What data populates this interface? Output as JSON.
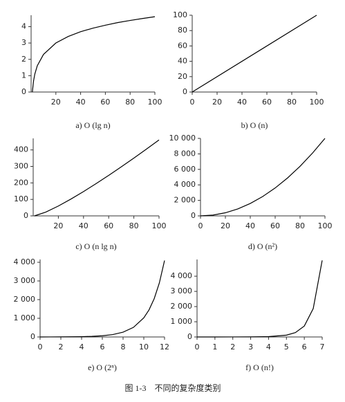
{
  "chart_data": [
    {
      "type": "line",
      "caption": "a) O (lg n)",
      "x": [
        1,
        2,
        3,
        5,
        10,
        20,
        30,
        40,
        50,
        60,
        70,
        80,
        90,
        100
      ],
      "series": [
        {
          "color": "#000000",
          "values": [
            0,
            0.69,
            1.1,
            1.61,
            2.3,
            3.0,
            3.4,
            3.69,
            3.91,
            4.09,
            4.25,
            4.38,
            4.5,
            4.61
          ]
        }
      ],
      "xlim": [
        0,
        100
      ],
      "ylim": [
        0,
        4.7
      ],
      "xticks": [
        20,
        40,
        60,
        80,
        100
      ],
      "yticks": [
        0,
        1,
        2,
        3,
        4
      ]
    },
    {
      "type": "line",
      "caption": "b) O (n)",
      "x": [
        0,
        100
      ],
      "series": [
        {
          "color": "#000000",
          "values": [
            0,
            100
          ]
        }
      ],
      "xlim": [
        0,
        100
      ],
      "ylim": [
        0,
        100
      ],
      "xticks": [
        0,
        20,
        40,
        60,
        80,
        100
      ],
      "yticks": [
        0,
        20,
        40,
        60,
        80,
        100
      ]
    },
    {
      "type": "line",
      "caption": "c) O (n lg n)",
      "x": [
        1,
        10,
        20,
        30,
        40,
        50,
        60,
        70,
        80,
        90,
        100
      ],
      "series": [
        {
          "color": "#000000",
          "values": [
            0,
            23.0,
            59.9,
            102.0,
            147.6,
            195.6,
            245.7,
            297.4,
            350.6,
            405.0,
            460.5
          ]
        }
      ],
      "xlim": [
        0,
        100
      ],
      "ylim": [
        0,
        470
      ],
      "xticks": [
        20,
        40,
        60,
        80,
        100
      ],
      "yticks": [
        0,
        100,
        200,
        300,
        400
      ]
    },
    {
      "type": "line",
      "caption": "d) O (n²)",
      "x": [
        0,
        10,
        20,
        30,
        40,
        50,
        60,
        70,
        80,
        90,
        100
      ],
      "series": [
        {
          "color": "#000000",
          "values": [
            0,
            100,
            400,
            900,
            1600,
            2500,
            3600,
            4900,
            6400,
            8100,
            10000
          ]
        }
      ],
      "xlim": [
        0,
        100
      ],
      "ylim": [
        0,
        10000
      ],
      "xticks": [
        0,
        20,
        40,
        60,
        80,
        100
      ],
      "yticks": [
        0,
        {
          "value": 2000,
          "label": "2 000"
        },
        {
          "value": 4000,
          "label": "4 000"
        },
        {
          "value": 6000,
          "label": "6 000"
        },
        {
          "value": 8000,
          "label": "8 000"
        },
        {
          "value": 10000,
          "label": "10 000"
        }
      ]
    },
    {
      "type": "line",
      "caption": "e) O (2ⁿ)",
      "x": [
        0,
        1,
        2,
        3,
        4,
        5,
        6,
        7,
        8,
        9,
        10,
        10.5,
        11,
        11.5,
        12
      ],
      "series": [
        {
          "color": "#000000",
          "values": [
            1,
            2,
            4,
            8,
            16,
            32,
            64,
            128,
            256,
            512,
            1024,
            1448,
            2048,
            2896,
            4096
          ]
        }
      ],
      "xlim": [
        0,
        12
      ],
      "ylim": [
        0,
        4150
      ],
      "xticks": [
        0,
        2,
        4,
        6,
        8,
        10,
        12
      ],
      "yticks": [
        0,
        {
          "value": 1000,
          "label": "1 000"
        },
        {
          "value": 2000,
          "label": "2 000"
        },
        {
          "value": 3000,
          "label": "3 000"
        },
        {
          "value": 4000,
          "label": "4 000"
        }
      ]
    },
    {
      "type": "line",
      "caption": "f) O (n!)",
      "x": [
        0,
        1,
        2,
        3,
        4,
        5,
        5.5,
        6,
        6.5,
        7
      ],
      "series": [
        {
          "color": "#000000",
          "values": [
            1,
            1,
            2,
            6,
            24,
            120,
            287.9,
            720,
            1871.3,
            5040
          ]
        }
      ],
      "xlim": [
        0,
        7
      ],
      "ylim": [
        0,
        5100
      ],
      "xticks": [
        0,
        1,
        2,
        3,
        4,
        5,
        6,
        7
      ],
      "yticks": [
        0,
        {
          "value": 1000,
          "label": "1 000"
        },
        {
          "value": 2000,
          "label": "2 000"
        },
        {
          "value": 3000,
          "label": "3 000"
        },
        {
          "value": 4000,
          "label": "4 000"
        }
      ]
    }
  ],
  "figure_caption": "图 1-3　不同的复杂度类别"
}
